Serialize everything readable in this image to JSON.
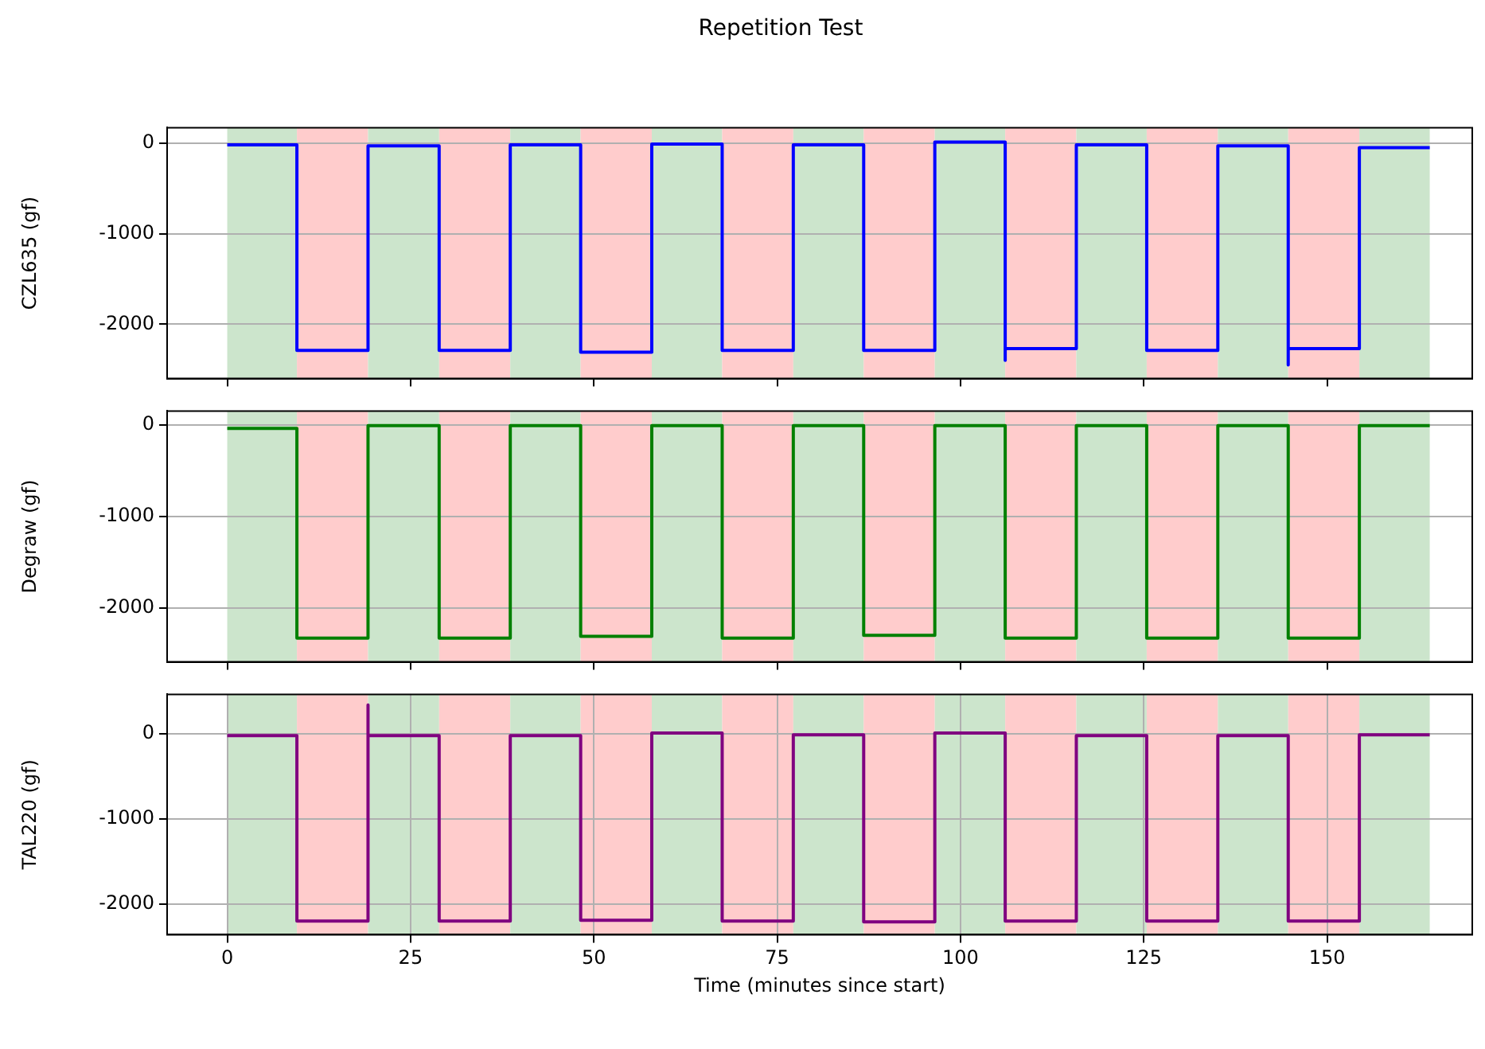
{
  "chart_data": [
    {
      "type": "line",
      "title": "Repetition Test",
      "ylabel": "CZL635 (gf)",
      "xlim": [
        -8.2,
        169.8
      ],
      "xticks": [
        0,
        25,
        50,
        75,
        100,
        125,
        150
      ],
      "ylim": [
        -2600,
        170
      ],
      "yticks": [
        -2000,
        -1000,
        0
      ],
      "grid": "y",
      "tick_labels": "y",
      "x": [
        0,
        9.5,
        9.5,
        19.2,
        19.2,
        28.9,
        28.9,
        38.6,
        38.6,
        48.2,
        48.2,
        57.9,
        57.9,
        67.5,
        67.5,
        77.2,
        77.2,
        86.8,
        86.8,
        96.5,
        96.5,
        106.1,
        106.1,
        106.1,
        115.8,
        115.8,
        125.4,
        125.4,
        135.1,
        135.1,
        144.7,
        144.7,
        144.7,
        154.4,
        154.4,
        164.0
      ],
      "series": [
        {
          "color": "#0000ff",
          "values": [
            -20,
            -20,
            -2290,
            -2290,
            -30,
            -30,
            -2290,
            -2290,
            -20,
            -20,
            -2310,
            -2310,
            -10,
            -10,
            -2290,
            -2290,
            -20,
            -20,
            -2290,
            -2290,
            10,
            10,
            -2400,
            -2270,
            -2270,
            -20,
            -20,
            -2290,
            -2290,
            -30,
            -30,
            -2450,
            -2270,
            -2270,
            -50,
            -50
          ]
        }
      ],
      "bands": [
        {
          "axis": "x",
          "from": 0,
          "to": 9.5,
          "color": "#cce5cc"
        },
        {
          "axis": "x",
          "from": 9.5,
          "to": 19.2,
          "color": "#ffcccc"
        },
        {
          "axis": "x",
          "from": 19.2,
          "to": 28.9,
          "color": "#cce5cc"
        },
        {
          "axis": "x",
          "from": 28.9,
          "to": 38.6,
          "color": "#ffcccc"
        },
        {
          "axis": "x",
          "from": 38.6,
          "to": 48.2,
          "color": "#cce5cc"
        },
        {
          "axis": "x",
          "from": 48.2,
          "to": 57.9,
          "color": "#ffcccc"
        },
        {
          "axis": "x",
          "from": 57.9,
          "to": 67.5,
          "color": "#cce5cc"
        },
        {
          "axis": "x",
          "from": 67.5,
          "to": 77.2,
          "color": "#ffcccc"
        },
        {
          "axis": "x",
          "from": 77.2,
          "to": 86.8,
          "color": "#cce5cc"
        },
        {
          "axis": "x",
          "from": 86.8,
          "to": 96.5,
          "color": "#ffcccc"
        },
        {
          "axis": "x",
          "from": 96.5,
          "to": 106.1,
          "color": "#cce5cc"
        },
        {
          "axis": "x",
          "from": 106.1,
          "to": 115.8,
          "color": "#ffcccc"
        },
        {
          "axis": "x",
          "from": 115.8,
          "to": 125.4,
          "color": "#cce5cc"
        },
        {
          "axis": "x",
          "from": 125.4,
          "to": 135.1,
          "color": "#ffcccc"
        },
        {
          "axis": "x",
          "from": 135.1,
          "to": 144.7,
          "color": "#cce5cc"
        },
        {
          "axis": "x",
          "from": 144.7,
          "to": 154.4,
          "color": "#ffcccc"
        },
        {
          "axis": "x",
          "from": 154.4,
          "to": 164.0,
          "color": "#cce5cc"
        }
      ]
    },
    {
      "type": "line",
      "ylabel": "Degraw (gf)",
      "xlim": [
        -8.2,
        169.8
      ],
      "xticks": [
        0,
        25,
        50,
        75,
        100,
        125,
        150
      ],
      "ylim": [
        -2590,
        150
      ],
      "yticks": [
        -2000,
        -1000,
        0
      ],
      "grid": "y",
      "tick_labels": "y",
      "x": [
        0,
        9.5,
        9.5,
        19.2,
        19.2,
        28.9,
        28.9,
        38.6,
        38.6,
        48.2,
        48.2,
        57.9,
        57.9,
        67.5,
        67.5,
        77.2,
        77.2,
        86.8,
        86.8,
        96.5,
        96.5,
        106.1,
        106.1,
        115.8,
        115.8,
        125.4,
        125.4,
        135.1,
        135.1,
        144.7,
        144.7,
        154.4,
        154.4,
        164.0
      ],
      "series": [
        {
          "color": "#008000",
          "values": [
            -40,
            -40,
            -2330,
            -2330,
            -10,
            -10,
            -2330,
            -2330,
            -10,
            -10,
            -2310,
            -2310,
            -10,
            -10,
            -2330,
            -2330,
            -10,
            -10,
            -2300,
            -2300,
            -10,
            -10,
            -2330,
            -2330,
            -10,
            -10,
            -2330,
            -2330,
            -10,
            -10,
            -2330,
            -2330,
            -10,
            -10
          ]
        }
      ],
      "bands": [
        {
          "axis": "x",
          "from": 0,
          "to": 9.5,
          "color": "#cce5cc"
        },
        {
          "axis": "x",
          "from": 9.5,
          "to": 19.2,
          "color": "#ffcccc"
        },
        {
          "axis": "x",
          "from": 19.2,
          "to": 28.9,
          "color": "#cce5cc"
        },
        {
          "axis": "x",
          "from": 28.9,
          "to": 38.6,
          "color": "#ffcccc"
        },
        {
          "axis": "x",
          "from": 38.6,
          "to": 48.2,
          "color": "#cce5cc"
        },
        {
          "axis": "x",
          "from": 48.2,
          "to": 57.9,
          "color": "#ffcccc"
        },
        {
          "axis": "x",
          "from": 57.9,
          "to": 67.5,
          "color": "#cce5cc"
        },
        {
          "axis": "x",
          "from": 67.5,
          "to": 77.2,
          "color": "#ffcccc"
        },
        {
          "axis": "x",
          "from": 77.2,
          "to": 86.8,
          "color": "#cce5cc"
        },
        {
          "axis": "x",
          "from": 86.8,
          "to": 96.5,
          "color": "#ffcccc"
        },
        {
          "axis": "x",
          "from": 96.5,
          "to": 106.1,
          "color": "#cce5cc"
        },
        {
          "axis": "x",
          "from": 106.1,
          "to": 115.8,
          "color": "#ffcccc"
        },
        {
          "axis": "x",
          "from": 115.8,
          "to": 125.4,
          "color": "#cce5cc"
        },
        {
          "axis": "x",
          "from": 125.4,
          "to": 135.1,
          "color": "#ffcccc"
        },
        {
          "axis": "x",
          "from": 135.1,
          "to": 144.7,
          "color": "#cce5cc"
        },
        {
          "axis": "x",
          "from": 144.7,
          "to": 154.4,
          "color": "#ffcccc"
        },
        {
          "axis": "x",
          "from": 154.4,
          "to": 164.0,
          "color": "#cce5cc"
        }
      ]
    },
    {
      "type": "line",
      "ylabel": "TAL220 (gf)",
      "xlabel": "Time (minutes since start)",
      "xlim": [
        -8.2,
        169.8
      ],
      "xticks": [
        0,
        25,
        50,
        75,
        100,
        125,
        150
      ],
      "ylim": [
        -2360,
        465
      ],
      "yticks": [
        -2000,
        -1000,
        0
      ],
      "grid": true,
      "x": [
        0,
        9.5,
        9.5,
        19.2,
        19.2,
        19.2,
        28.9,
        28.9,
        38.6,
        38.6,
        48.2,
        48.2,
        57.9,
        57.9,
        67.5,
        67.5,
        77.2,
        77.2,
        86.8,
        86.8,
        96.5,
        96.5,
        106.1,
        106.1,
        115.8,
        115.8,
        125.4,
        125.4,
        135.1,
        135.1,
        144.7,
        144.7,
        154.4,
        154.4,
        164.0
      ],
      "series": [
        {
          "color": "#800080",
          "values": [
            -20,
            -20,
            -2200,
            -2200,
            340,
            -20,
            -20,
            -2200,
            -2200,
            -20,
            -20,
            -2190,
            -2190,
            10,
            10,
            -2200,
            -2200,
            -10,
            -10,
            -2210,
            -2210,
            10,
            10,
            -2200,
            -2200,
            -20,
            -20,
            -2200,
            -2200,
            -20,
            -20,
            -2200,
            -2200,
            -10,
            -10
          ]
        }
      ],
      "bands": [
        {
          "axis": "x",
          "from": 0,
          "to": 9.5,
          "color": "#cce5cc"
        },
        {
          "axis": "x",
          "from": 9.5,
          "to": 19.2,
          "color": "#ffcccc"
        },
        {
          "axis": "x",
          "from": 19.2,
          "to": 28.9,
          "color": "#cce5cc"
        },
        {
          "axis": "x",
          "from": 28.9,
          "to": 38.6,
          "color": "#ffcccc"
        },
        {
          "axis": "x",
          "from": 38.6,
          "to": 48.2,
          "color": "#cce5cc"
        },
        {
          "axis": "x",
          "from": 48.2,
          "to": 57.9,
          "color": "#ffcccc"
        },
        {
          "axis": "x",
          "from": 57.9,
          "to": 67.5,
          "color": "#cce5cc"
        },
        {
          "axis": "x",
          "from": 67.5,
          "to": 77.2,
          "color": "#ffcccc"
        },
        {
          "axis": "x",
          "from": 77.2,
          "to": 86.8,
          "color": "#cce5cc"
        },
        {
          "axis": "x",
          "from": 86.8,
          "to": 96.5,
          "color": "#ffcccc"
        },
        {
          "axis": "x",
          "from": 96.5,
          "to": 106.1,
          "color": "#cce5cc"
        },
        {
          "axis": "x",
          "from": 106.1,
          "to": 115.8,
          "color": "#ffcccc"
        },
        {
          "axis": "x",
          "from": 115.8,
          "to": 125.4,
          "color": "#cce5cc"
        },
        {
          "axis": "x",
          "from": 125.4,
          "to": 135.1,
          "color": "#ffcccc"
        },
        {
          "axis": "x",
          "from": 135.1,
          "to": 144.7,
          "color": "#cce5cc"
        },
        {
          "axis": "x",
          "from": 144.7,
          "to": 154.4,
          "color": "#ffcccc"
        },
        {
          "axis": "x",
          "from": 154.4,
          "to": 164.0,
          "color": "#cce5cc"
        }
      ]
    }
  ]
}
